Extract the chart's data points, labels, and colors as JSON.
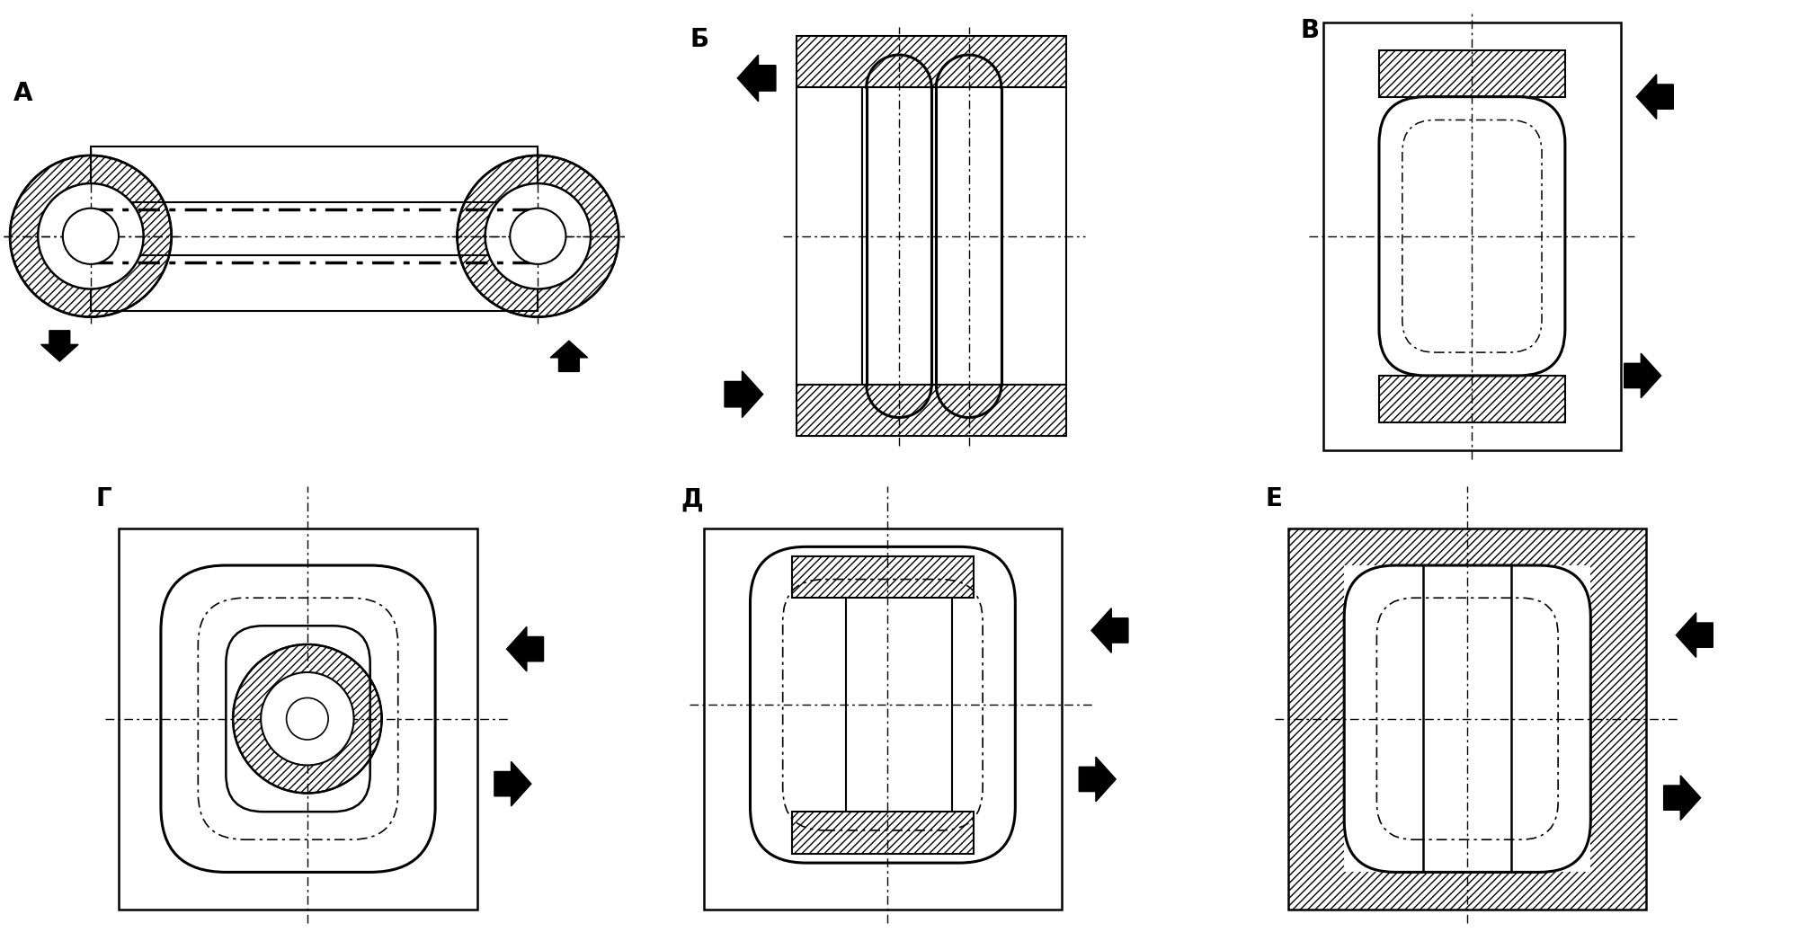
{
  "labels": [
    "А",
    "Б",
    "В",
    "Г",
    "Д",
    "Е"
  ],
  "label_fontsize": 20,
  "line_color": "#000000",
  "arrow_color": "#000000",
  "bg_color": "#ffffff"
}
